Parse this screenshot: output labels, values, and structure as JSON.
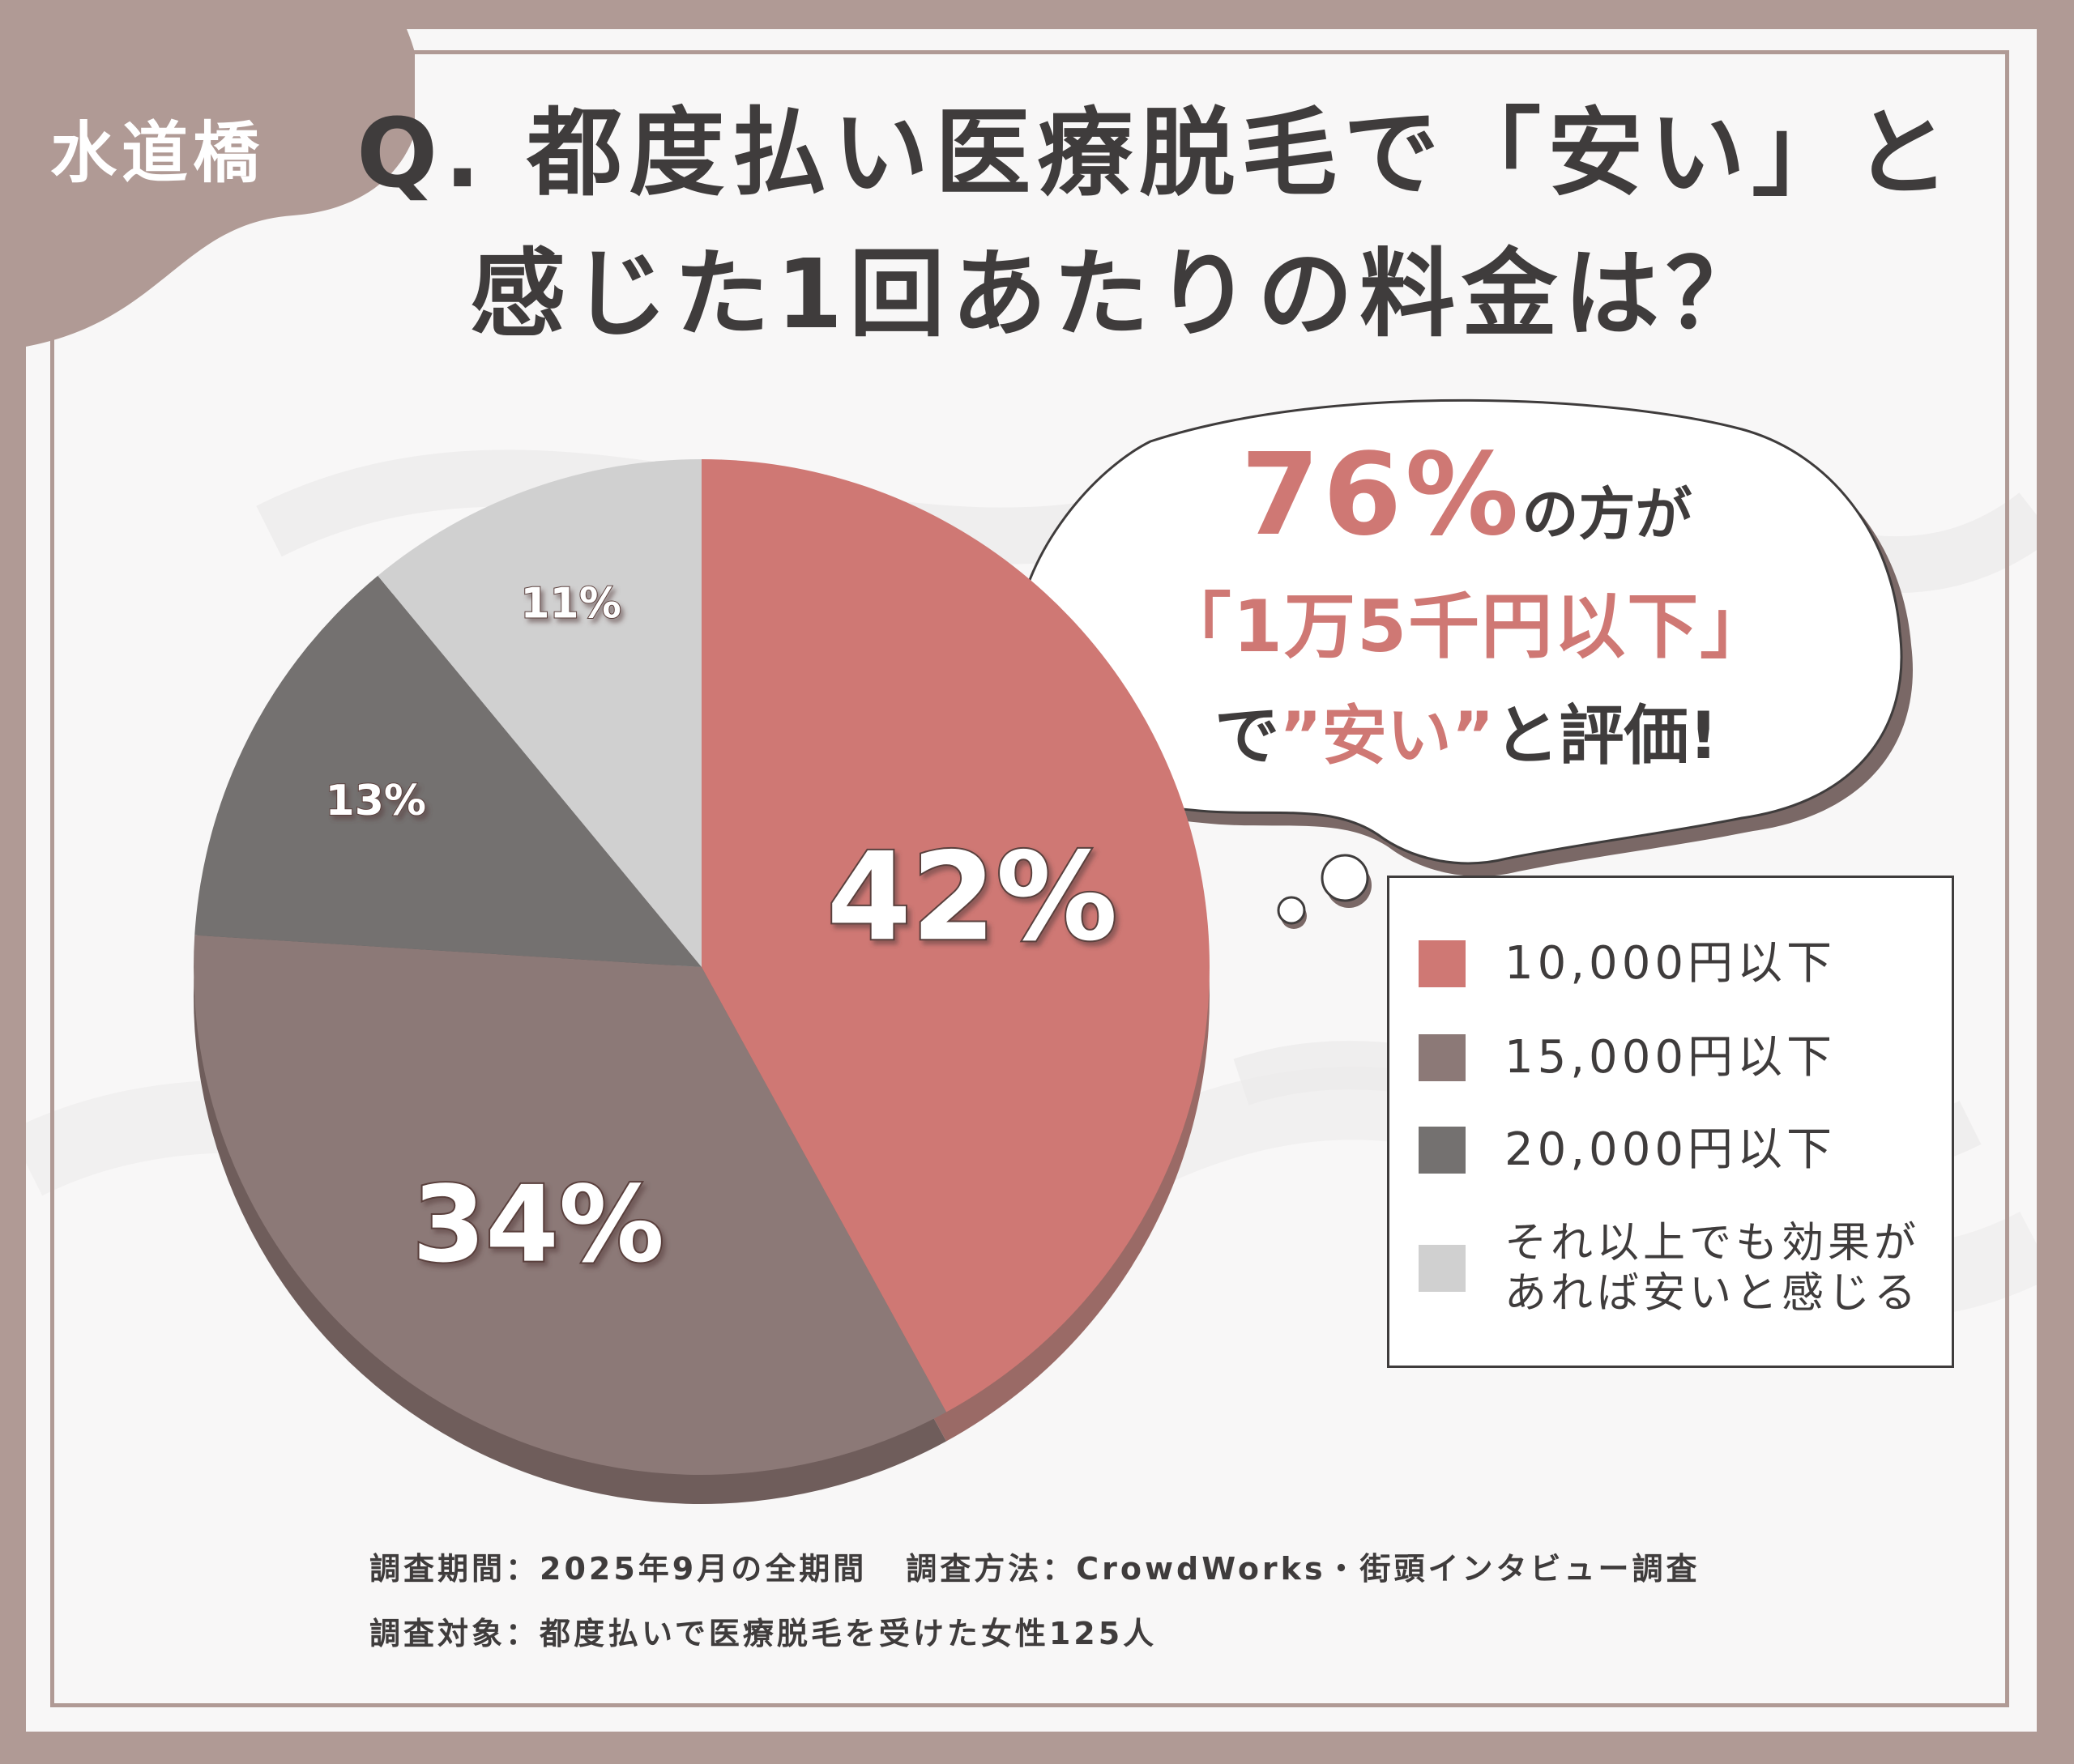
{
  "badge": "水道橋",
  "title": {
    "line1": "Q. 都度払い医療脱毛で「安い」と",
    "line2": "感じた1回あたりの料金は？"
  },
  "callout": {
    "percent": "76%",
    "line1_suffix": "の方が",
    "line2": "「1万5千円以下」",
    "line3_prefix": "で",
    "line3_accent": "”安い”",
    "line3_suffix": "と評価!"
  },
  "footer": {
    "period": "調査期間：2025年9月の全期間",
    "method": "調査方法：CrowdWorks・街頭インタビュー調査",
    "target": "調査対象：都度払いで医療脱毛を受けた女性125人"
  },
  "colors": {
    "background": "#b09a95",
    "accent": "#cf7874",
    "text": "#3f3c3c"
  },
  "chart_data": {
    "type": "pie",
    "title": "",
    "legend_position": "right",
    "start_angle_deg": 0,
    "direction": "clockwise",
    "slices": [
      {
        "label": "10,000円以下",
        "value": 42,
        "display": "42%",
        "color": "#cf7874",
        "side": "#9a6a66"
      },
      {
        "label": "15,000円以下",
        "value": 34,
        "display": "34%",
        "color": "#8c7977",
        "side": "#6f5d5b"
      },
      {
        "label": "20,000円以下",
        "value": 13,
        "display": "13%",
        "color": "#747170",
        "side": "#5a5857"
      },
      {
        "label": "それ以上でも効果が\nあれば安いと感じる",
        "value": 11,
        "display": "11%",
        "color": "#d0d0d0",
        "side": "#a9a9a9"
      }
    ]
  }
}
